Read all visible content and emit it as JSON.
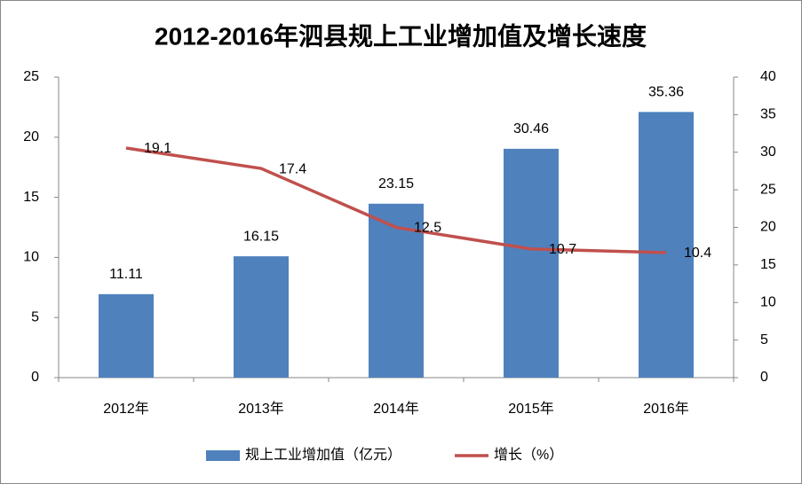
{
  "chart_data": {
    "type": "bar-line",
    "title": "2012-2016年泗县规上工业增加值及增长速度",
    "categories": [
      "2012年",
      "2013年",
      "2014年",
      "2015年",
      "2016年"
    ],
    "series": [
      {
        "name": "规上工业增加值（亿元）",
        "type": "bar",
        "color": "#4f81bd",
        "axis": "y2",
        "values": [
          11.11,
          16.15,
          23.15,
          30.46,
          35.36
        ]
      },
      {
        "name": "增长（%）",
        "type": "line",
        "color": "#c0504d",
        "axis": "y",
        "values": [
          19.1,
          17.4,
          12.5,
          10.7,
          10.4
        ]
      }
    ],
    "ylim": [
      0,
      25
    ],
    "yticks": [
      0,
      5,
      10,
      15,
      20,
      25
    ],
    "y2lim": [
      0,
      40
    ],
    "y2ticks": [
      0,
      5,
      10,
      15,
      20,
      25,
      30,
      35,
      40
    ],
    "legend": "bottom"
  }
}
